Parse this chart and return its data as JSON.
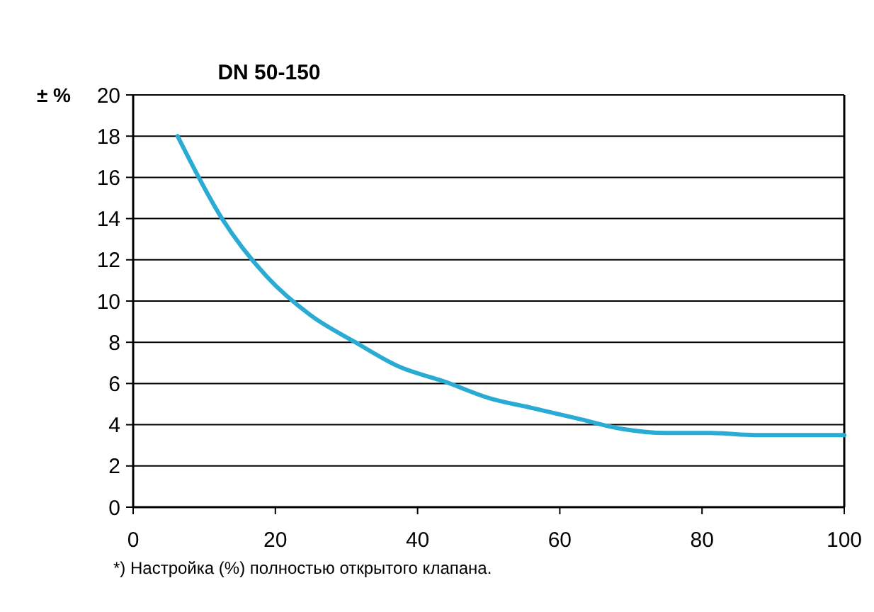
{
  "chart_data": {
    "type": "line",
    "title": "DN 50-150",
    "ylabel": "± %",
    "annotations": [
      "*) Настройка (%) полностью открытого клапана."
    ],
    "x": [
      6.25,
      12.5,
      18.75,
      25,
      31.25,
      37.5,
      43.75,
      50,
      56.25,
      62.5,
      68.75,
      75,
      81.25,
      87.5,
      93.75,
      100
    ],
    "series": [
      {
        "color": "#29abd4",
        "values": [
          18,
          14,
          11.2,
          9.3,
          8,
          6.8,
          6.1,
          5.3,
          4.8,
          4.3,
          3.8,
          3.6,
          3.6,
          3.5,
          3.5,
          3.5
        ]
      }
    ],
    "xlim": [
      0,
      100
    ],
    "xticks": [
      0,
      20,
      40,
      60,
      80,
      100
    ],
    "ylim": [
      0,
      20
    ],
    "yticks": [
      0,
      2,
      4,
      6,
      8,
      10,
      12,
      14,
      16,
      18,
      20
    ],
    "grid": "y",
    "marker": "none",
    "line_style": "solid"
  }
}
